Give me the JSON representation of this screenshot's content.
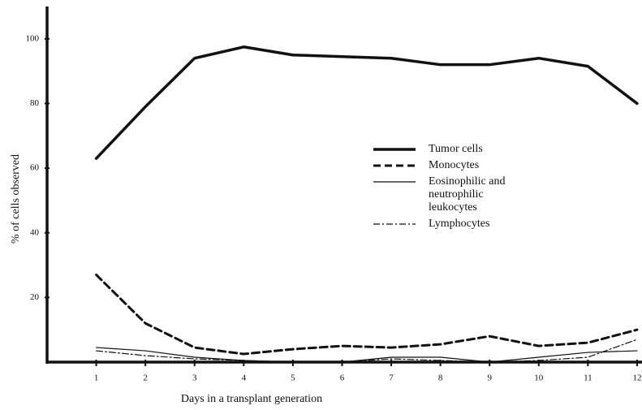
{
  "chart_data": {
    "type": "line",
    "x_label": "Days in a transplant generation",
    "y_label": "% of cells observed",
    "x": [
      1,
      2,
      3,
      4,
      5,
      6,
      7,
      8,
      9,
      10,
      11,
      12
    ],
    "xlim": [
      0,
      12.1
    ],
    "ylim": [
      0,
      110
    ],
    "xticks": [
      1,
      2,
      3,
      4,
      5,
      6,
      7,
      8,
      9,
      10,
      11,
      12
    ],
    "yticks": [
      20,
      40,
      60,
      80,
      100
    ],
    "grid": false,
    "legend": "center-right",
    "series": [
      {
        "name": "Tumor cells",
        "color": "#111111",
        "style": "solid",
        "width": 3.5,
        "values": [
          63,
          79,
          94,
          97.5,
          95,
          94.5,
          94,
          92,
          92,
          94,
          91.5,
          80
        ]
      },
      {
        "name": "Monocytes",
        "color": "#111111",
        "style": "dashed",
        "width": 3,
        "values": [
          27,
          12,
          4.5,
          2.5,
          4,
          5,
          4.5,
          5.5,
          8,
          5,
          6,
          10
        ]
      },
      {
        "name": "Eosinophilic and neutrophilic leukocytes",
        "color": "#111111",
        "style": "solid",
        "width": 1.2,
        "values": [
          4.5,
          3.5,
          1.5,
          0.5,
          0,
          0,
          1.5,
          1.5,
          0,
          1.5,
          3,
          3.5
        ]
      },
      {
        "name": "Lymphocytes",
        "color": "#111111",
        "style": "dash-dot",
        "width": 1.2,
        "values": [
          3.5,
          2,
          1,
          0.5,
          0,
          0,
          1,
          0.5,
          0,
          0.5,
          1.5,
          7
        ]
      }
    ]
  }
}
